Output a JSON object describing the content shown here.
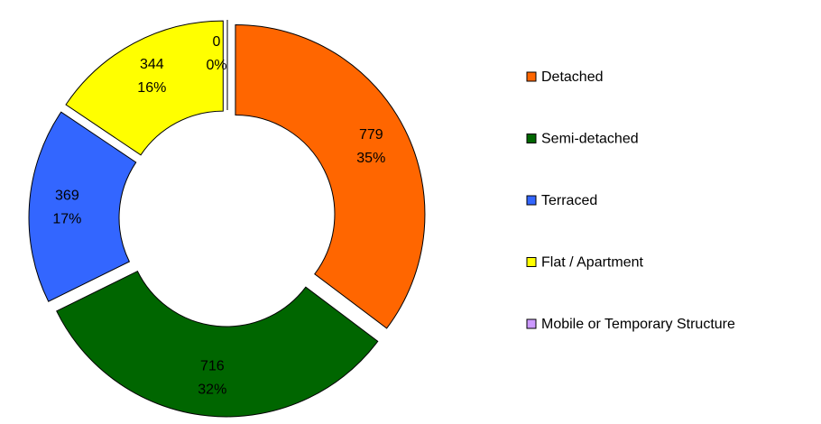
{
  "chart_data": {
    "type": "donut",
    "categories": [
      "Detached",
      "Semi-detached",
      "Terraced",
      "Flat / Apartment",
      "Mobile or Temporary Structure"
    ],
    "values": [
      779,
      716,
      369,
      344,
      0
    ],
    "percentage_labels": [
      "35%",
      "32%",
      "17%",
      "16%",
      "0%"
    ],
    "colors": [
      "#ff6600",
      "#006600",
      "#3366ff",
      "#ffff00",
      "#cc99ff"
    ],
    "legend": "right"
  }
}
